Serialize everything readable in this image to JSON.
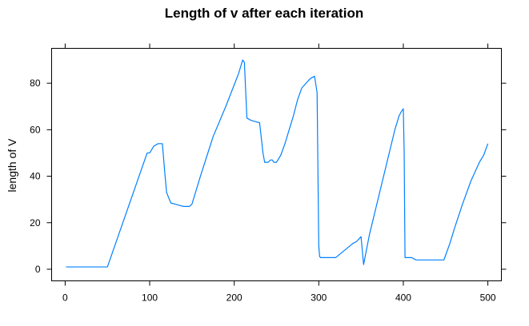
{
  "chart_data": {
    "type": "line",
    "title": "Length of v after each iteration",
    "xlabel": "",
    "ylabel": "length of V",
    "xlim": [
      -16,
      516
    ],
    "ylim": [
      -5,
      95
    ],
    "x_ticks": [
      0,
      100,
      200,
      300,
      400,
      500
    ],
    "y_ticks": [
      0,
      20,
      40,
      60,
      80
    ],
    "x_tick_labels": [
      "0",
      "100",
      "200",
      "300",
      "400",
      "500"
    ],
    "y_tick_labels": [
      "0",
      "20",
      "40",
      "60",
      "80"
    ],
    "grid": false,
    "line_color": "#0080ff",
    "series": [
      {
        "x": [
          1,
          50,
          97,
          100,
          105,
          110,
          115,
          118,
          120,
          125,
          130,
          135,
          140,
          145,
          147,
          150,
          160,
          175,
          190,
          205,
          210,
          212,
          215,
          220,
          225,
          230,
          234,
          236,
          240,
          243,
          245,
          247,
          250,
          255,
          260,
          265,
          270,
          275,
          280,
          285,
          290,
          295,
          298,
          300,
          301,
          302,
          303,
          305,
          310,
          320,
          330,
          340,
          345,
          350,
          353,
          360,
          370,
          380,
          390,
          395,
          398,
          400,
          401,
          402,
          405,
          410,
          415,
          420,
          430,
          448,
          450,
          455,
          460,
          470,
          480,
          490,
          495,
          500
        ],
        "y": [
          1,
          1,
          50,
          50,
          53,
          54,
          54,
          41,
          33,
          28.5,
          28,
          27.5,
          27,
          27,
          27,
          28,
          40,
          57,
          70,
          84,
          90,
          89,
          65,
          64,
          63.5,
          63,
          50,
          46,
          46,
          47,
          47,
          46,
          46,
          49,
          54,
          60,
          66,
          73,
          78,
          80,
          82,
          83,
          76,
          10,
          5.5,
          5,
          5,
          5,
          5,
          5,
          8,
          11,
          12,
          14,
          2,
          15,
          30,
          45,
          60,
          66,
          68,
          69,
          50,
          5,
          5,
          5,
          4,
          4,
          4,
          4,
          6,
          11,
          17,
          28,
          38,
          46,
          49,
          54
        ]
      }
    ]
  }
}
